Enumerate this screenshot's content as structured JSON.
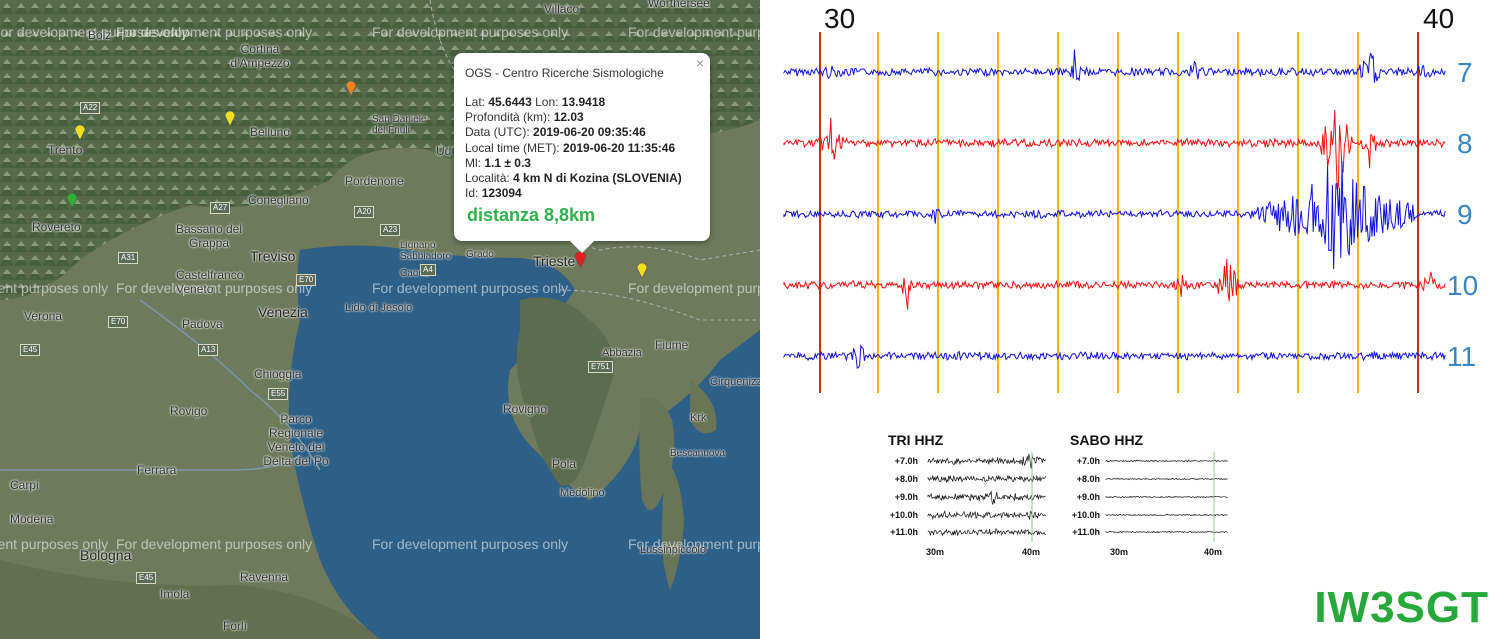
{
  "map": {
    "watermark_text": "For development purposes only",
    "places": [
      {
        "name": "Bolz",
        "cls": ""
      },
      {
        "name": "Cortina d'Ampezzo",
        "cls": ""
      },
      {
        "name": "Villaco",
        "cls": ""
      },
      {
        "name": "Worthersee",
        "cls": ""
      },
      {
        "name": "Belluno",
        "cls": ""
      },
      {
        "name": "San Daniele del Friuli",
        "cls": ""
      },
      {
        "name": "Trento",
        "cls": ""
      },
      {
        "name": "Pordenone",
        "cls": ""
      },
      {
        "name": "Conegliano",
        "cls": ""
      },
      {
        "name": "Bassano del Grappa",
        "cls": ""
      },
      {
        "name": "Rovereto",
        "cls": ""
      },
      {
        "name": "Treviso",
        "cls": "big"
      },
      {
        "name": "Castelfranco Veneto",
        "cls": ""
      },
      {
        "name": "Lignano Sabbiadoro",
        "cls": ""
      },
      {
        "name": "Grado",
        "cls": ""
      },
      {
        "name": "Trieste",
        "cls": "big"
      },
      {
        "name": "Caorle",
        "cls": ""
      },
      {
        "name": "Verona",
        "cls": ""
      },
      {
        "name": "Venezia",
        "cls": "big"
      },
      {
        "name": "Lido di Jesolo",
        "cls": ""
      },
      {
        "name": "Padova",
        "cls": ""
      },
      {
        "name": "Chioggia",
        "cls": ""
      },
      {
        "name": "Rovigo",
        "cls": ""
      },
      {
        "name": "Parco Regionale Veneto del Delta del Po",
        "cls": ""
      },
      {
        "name": "Ferrara",
        "cls": ""
      },
      {
        "name": "Carpi",
        "cls": ""
      },
      {
        "name": "Modena",
        "cls": ""
      },
      {
        "name": "Bologna",
        "cls": "big"
      },
      {
        "name": "Ravenna",
        "cls": ""
      },
      {
        "name": "Imola",
        "cls": ""
      },
      {
        "name": "Forlì",
        "cls": ""
      },
      {
        "name": "Fiume",
        "cls": ""
      },
      {
        "name": "Abbazia",
        "cls": ""
      },
      {
        "name": "Rovigno",
        "cls": ""
      },
      {
        "name": "Pola",
        "cls": ""
      },
      {
        "name": "Medolino",
        "cls": ""
      },
      {
        "name": "Cirquenizza",
        "cls": ""
      },
      {
        "name": "Krk",
        "cls": ""
      },
      {
        "name": "Bescanuova",
        "cls": ""
      },
      {
        "name": "Lussinpiccolo",
        "cls": ""
      },
      {
        "name": "Ud",
        "cls": ""
      },
      {
        "name": "Pirano",
        "cls": ""
      }
    ],
    "roads": [
      "A22",
      "A27",
      "A31",
      "A4",
      "E70",
      "E55",
      "A13",
      "A20",
      "E45",
      "E751",
      "A23",
      "E70",
      "E45"
    ],
    "popup": {
      "close": "×",
      "title": "OGS - Centro Ricerche Sismologiche",
      "lat_label": "Lat:",
      "lat": "45.6443",
      "lon_label": "Lon:",
      "lon": "13.9418",
      "depth_label": "Profondità (km):",
      "depth": "12.03",
      "date_label": "Data (UTC):",
      "date": "2019-06-20 09:35:46",
      "local_label": "Local time (MET):",
      "local": "2019-06-20 11:35:46",
      "ml_label": "Ml:",
      "ml": "1.1 ± 0.3",
      "loc_label": "Località:",
      "loc": "4 km N di Kozina (SLOVENIA)",
      "id_label": "Id:",
      "id": "123094",
      "distance": "distanza 8,8km"
    }
  },
  "seismo": {
    "minute_start": "30",
    "minute_end": "40",
    "hours": [
      "7",
      "8",
      "9",
      "10",
      "11"
    ],
    "trace_colors": [
      "#1010e0",
      "#f01010",
      "#1010e0",
      "#f01010",
      "#1010e0"
    ],
    "marker_color": "#f5b800",
    "edge_color": "#c83010",
    "small": [
      {
        "title": "TRI HHZ",
        "hours": [
          "+7.0h",
          "+8.0h",
          "+9.0h",
          "+10.0h",
          "+11.0h"
        ],
        "x": [
          "30m",
          "40m"
        ]
      },
      {
        "title": "SABO HHZ",
        "hours": [
          "+7.0h",
          "+8.0h",
          "+9.0h",
          "+10.0h",
          "+11.0h"
        ],
        "x": [
          "30m",
          "40m"
        ]
      }
    ],
    "callsign": "IW3SGT"
  }
}
